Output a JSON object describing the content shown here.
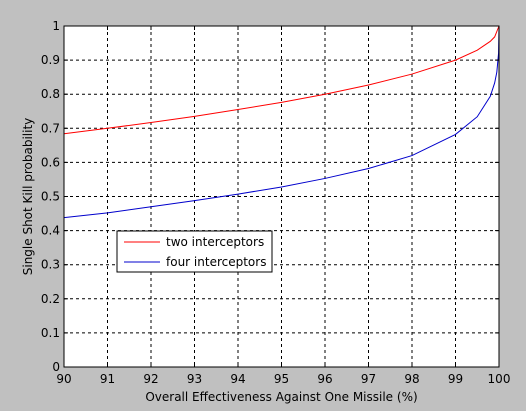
{
  "chart_data": {
    "type": "line",
    "title": "",
    "xlabel": "Overall Effectiveness Against One Missile (%)",
    "ylabel": "Single Shot Kill probability",
    "xlim": [
      90,
      100
    ],
    "ylim": [
      0,
      1
    ],
    "xticks": [
      90,
      91,
      92,
      93,
      94,
      95,
      96,
      97,
      98,
      99,
      100
    ],
    "xtick_labels": [
      "90",
      "91",
      "92",
      "93",
      "94",
      "95",
      "96",
      "97",
      "98",
      "99",
      "100"
    ],
    "yticks": [
      0,
      0.1,
      0.2,
      0.3,
      0.4,
      0.5,
      0.6,
      0.7,
      0.8,
      0.9,
      1
    ],
    "ytick_labels": [
      "0",
      "0.1",
      "0.2",
      "0.3",
      "0.4",
      "0.5",
      "0.6",
      "0.7",
      "0.8",
      "0.9",
      "1"
    ],
    "grid": true,
    "legend_position": "lower-left",
    "series": [
      {
        "name": "two interceptors",
        "color": "#ff0000",
        "x": [
          90,
          91,
          92,
          93,
          94,
          95,
          96,
          97,
          98,
          99,
          99.5,
          99.8,
          99.9,
          100
        ],
        "y": [
          0.684,
          0.7,
          0.717,
          0.735,
          0.755,
          0.776,
          0.8,
          0.827,
          0.859,
          0.9,
          0.929,
          0.955,
          0.968,
          1.0
        ]
      },
      {
        "name": "four interceptors",
        "color": "#0000cc",
        "x": [
          90,
          91,
          92,
          93,
          94,
          95,
          96,
          97,
          98,
          99,
          99.5,
          99.8,
          99.9,
          99.95,
          99.99,
          100
        ],
        "y": [
          0.438,
          0.452,
          0.47,
          0.488,
          0.507,
          0.528,
          0.553,
          0.582,
          0.62,
          0.682,
          0.734,
          0.794,
          0.833,
          0.865,
          0.92,
          1.0
        ]
      }
    ]
  }
}
